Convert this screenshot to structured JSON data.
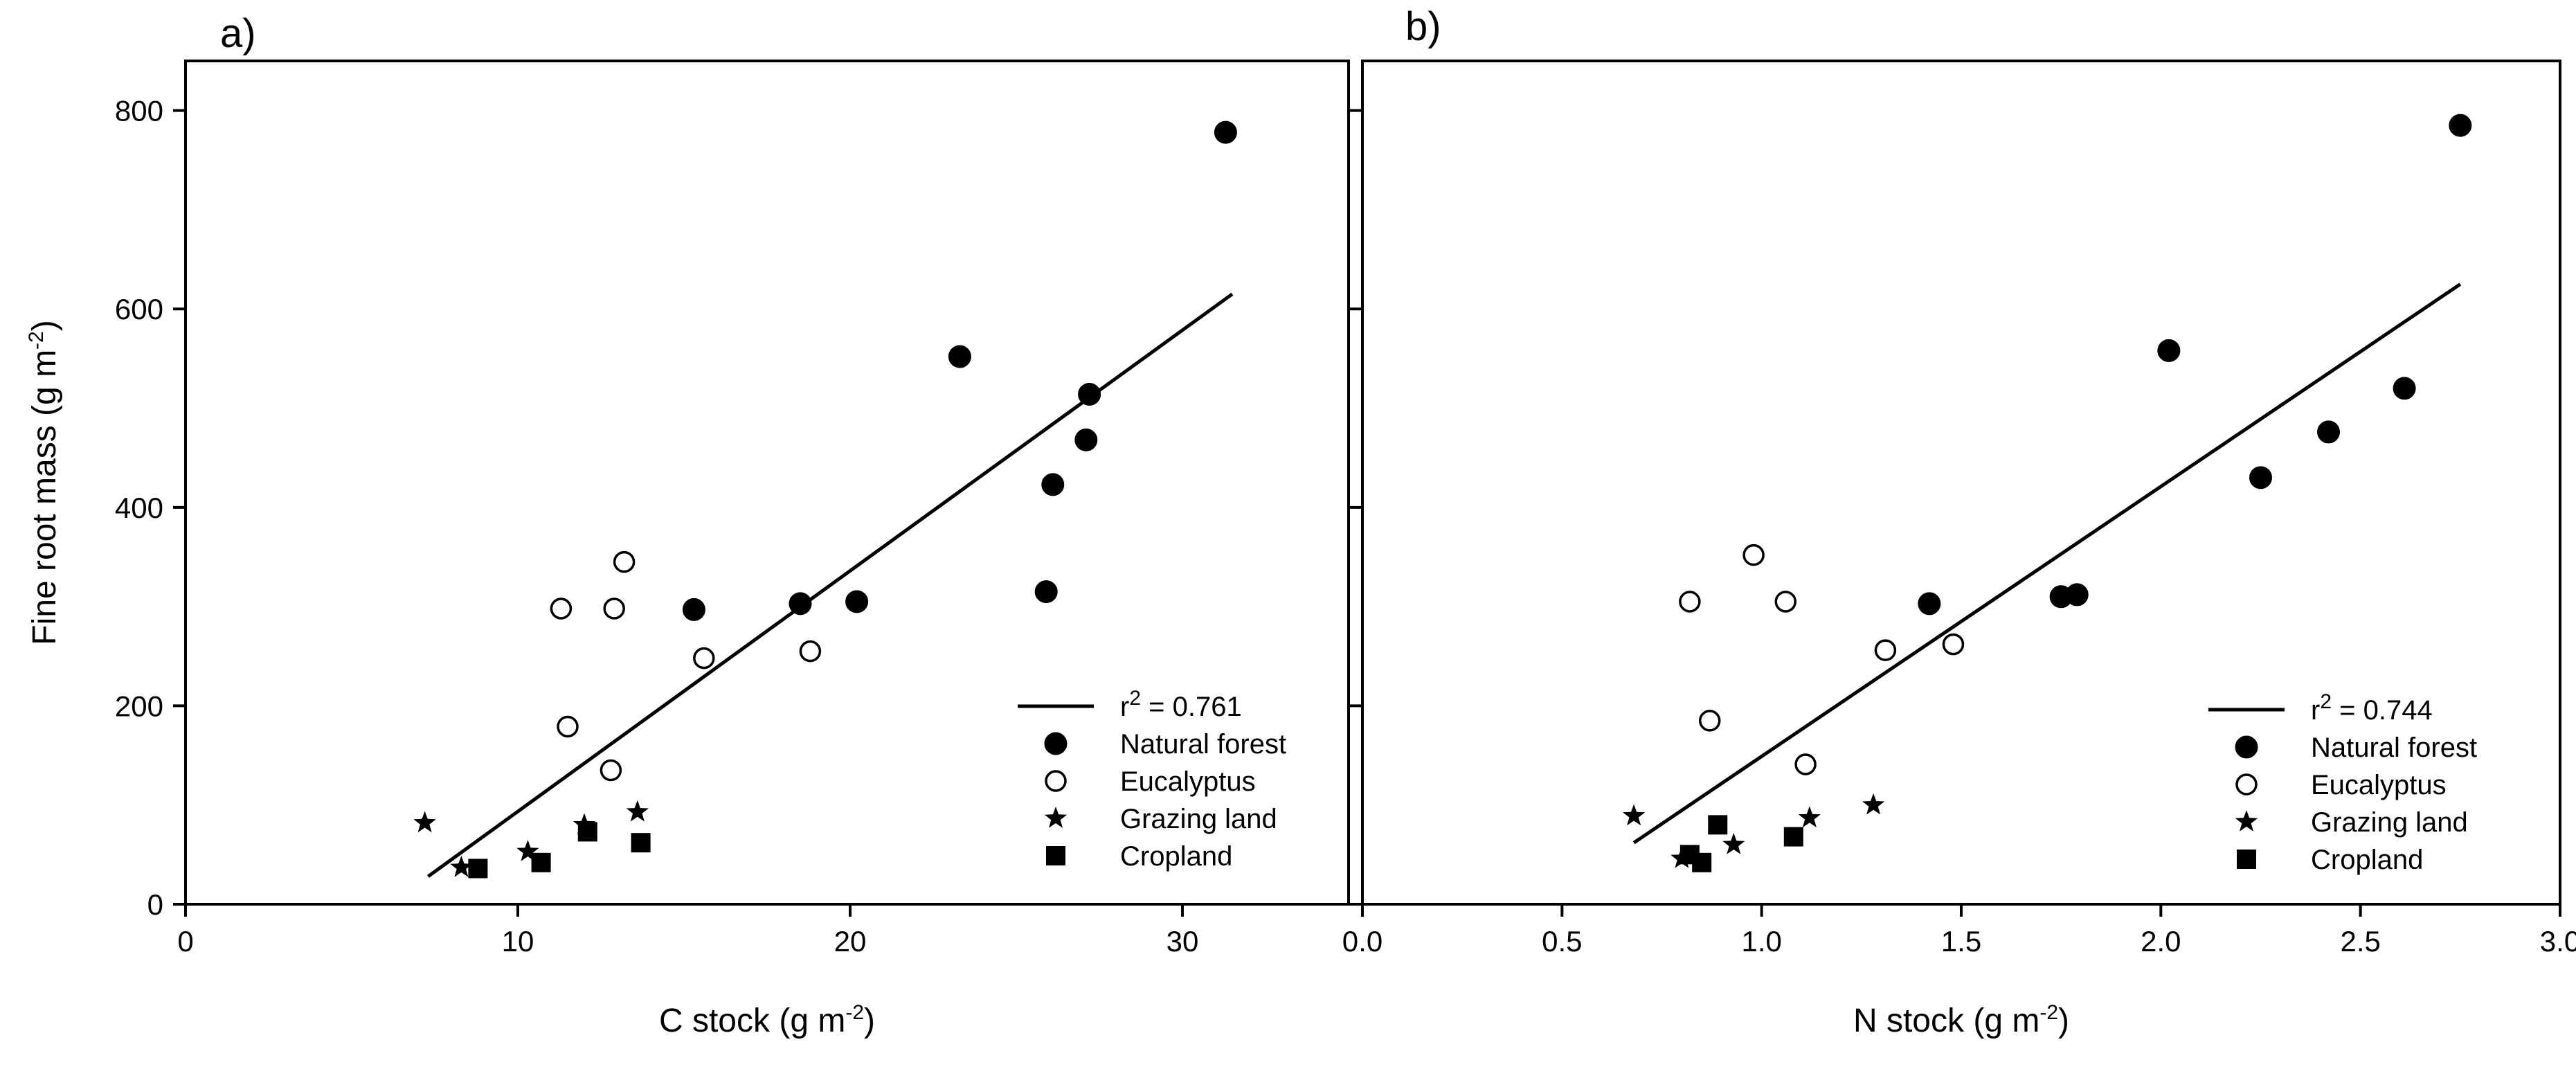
{
  "chart_data": [
    {
      "type": "scatter",
      "panel_label": "a)",
      "xlabel": "C stock (g m",
      "xlabel_sup": "-2",
      "xlabel_end": ")",
      "ylabel": "Fine root mass (g m",
      "ylabel_sup": "-2",
      "ylabel_end": ")",
      "xlim": [
        0,
        35
      ],
      "ylim": [
        0,
        850
      ],
      "xticks": [
        0,
        10,
        20,
        30
      ],
      "yticks": [
        0,
        200,
        400,
        600,
        800
      ],
      "show_ytick_labels": true,
      "fit": {
        "x": [
          7.3,
          31.5
        ],
        "y": [
          28,
          615
        ]
      },
      "legend": {
        "fit_label": "r",
        "fit_sup": "2",
        "fit_value": " = 0.761",
        "entries": [
          "Natural forest",
          "Eucalyptus",
          "Grazing land",
          "Cropland"
        ]
      },
      "series": [
        {
          "name": "Natural forest",
          "marker": "filled-circle",
          "x": [
            31.3,
            23.3,
            27.2,
            27.1,
            26.1,
            25.9,
            18.5,
            20.2,
            15.3
          ],
          "y": [
            778,
            552,
            514,
            468,
            423,
            315,
            303,
            305,
            297
          ]
        },
        {
          "name": "Eucalyptus",
          "marker": "open-circle",
          "x": [
            13.2,
            11.3,
            12.9,
            15.6,
            18.8,
            11.5,
            12.8
          ],
          "y": [
            345,
            298,
            298,
            248,
            255,
            179,
            135
          ]
        },
        {
          "name": "Grazing land",
          "marker": "star",
          "x": [
            7.2,
            8.3,
            10.3,
            12.0,
            13.6
          ],
          "y": [
            82,
            37,
            53,
            80,
            93
          ]
        },
        {
          "name": "Cropland",
          "marker": "square",
          "x": [
            8.8,
            10.7,
            12.1,
            13.7
          ],
          "y": [
            36,
            42,
            73,
            62
          ]
        }
      ]
    },
    {
      "type": "scatter",
      "panel_label": "b)",
      "xlabel": "N stock (g m",
      "xlabel_sup": "-2",
      "xlabel_end": ")",
      "xlim": [
        0,
        3.0
      ],
      "ylim": [
        0,
        850
      ],
      "xticks": [
        0.0,
        0.5,
        1.0,
        1.5,
        2.0,
        2.5,
        3.0
      ],
      "xtick_labels": [
        "0.0",
        "0.5",
        "1.0",
        "1.5",
        "2.0",
        "2.5",
        "3.0"
      ],
      "yticks": [
        0,
        200,
        400,
        600,
        800
      ],
      "show_ytick_labels": false,
      "fit": {
        "x": [
          0.68,
          2.75
        ],
        "y": [
          62,
          625
        ]
      },
      "legend": {
        "fit_label": "r",
        "fit_sup": "2",
        "fit_value": " = 0.744",
        "entries": [
          "Natural forest",
          "Eucalyptus",
          "Grazing land",
          "Cropland"
        ]
      },
      "series": [
        {
          "name": "Natural forest",
          "marker": "filled-circle",
          "x": [
            2.75,
            2.02,
            2.61,
            2.42,
            2.25,
            1.75,
            1.79,
            1.42
          ],
          "y": [
            785,
            558,
            520,
            476,
            430,
            310,
            312,
            303
          ]
        },
        {
          "name": "Eucalyptus",
          "marker": "open-circle",
          "x": [
            0.98,
            0.82,
            1.06,
            1.31,
            1.48,
            0.87,
            1.11
          ],
          "y": [
            352,
            305,
            305,
            256,
            262,
            185,
            141
          ]
        },
        {
          "name": "Grazing land",
          "marker": "star",
          "x": [
            0.68,
            0.8,
            0.93,
            1.12,
            1.28
          ],
          "y": [
            89,
            46,
            60,
            87,
            100
          ]
        },
        {
          "name": "Cropland",
          "marker": "square",
          "x": [
            0.82,
            0.85,
            0.89,
            1.08
          ],
          "y": [
            50,
            42,
            80,
            68
          ]
        }
      ]
    }
  ]
}
